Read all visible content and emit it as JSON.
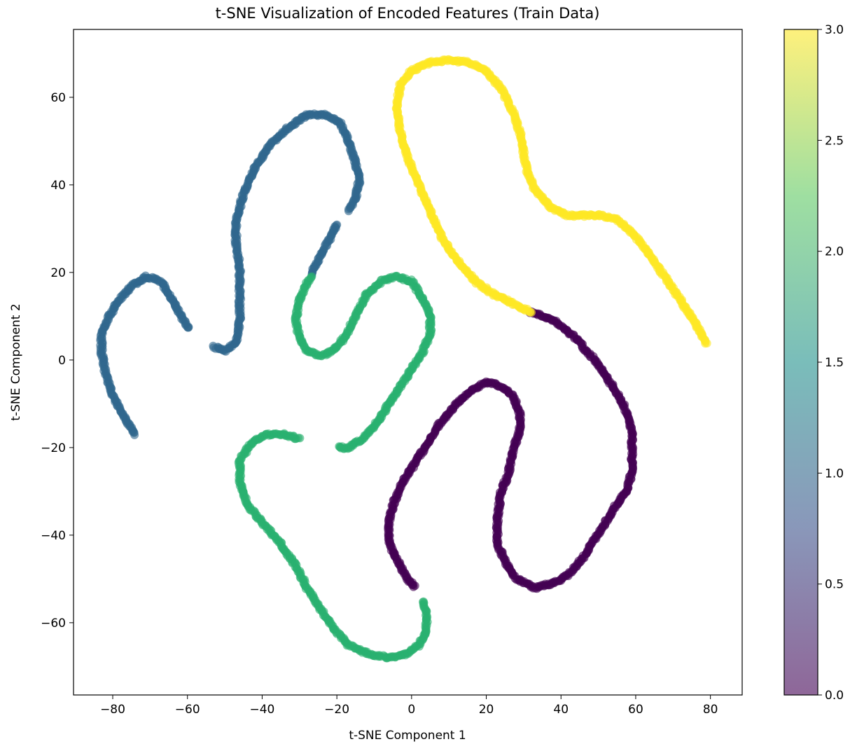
{
  "chart_data": {
    "type": "scatter",
    "title": "t-SNE Visualization of Encoded Features (Train Data)",
    "xlabel": "t-SNE Component 1",
    "ylabel": "t-SNE Component 2",
    "xlim": [
      -90.5,
      88.5
    ],
    "ylim": [
      -76.5,
      75.5
    ],
    "xticks": [
      -80,
      -60,
      -40,
      -20,
      0,
      20,
      40,
      60,
      80
    ],
    "yticks": [
      -60,
      -40,
      -20,
      0,
      20,
      40,
      60
    ],
    "grid": false,
    "marker_alpha": 0.6,
    "colorbar": {
      "min": 0.0,
      "max": 3.0,
      "ticks": [
        "0.0",
        "0.5",
        "1.0",
        "1.5",
        "2.0",
        "2.5",
        "3.0"
      ],
      "colormap": "viridis",
      "stops": [
        "#440154",
        "#3b528b",
        "#21918c",
        "#5ec962",
        "#fde725"
      ]
    },
    "series": [
      {
        "label_value": 0,
        "color": "#440154",
        "points": [
          [
            32,
            11
          ],
          [
            38,
            9
          ],
          [
            44,
            5
          ],
          [
            49,
            0
          ],
          [
            53,
            -5
          ],
          [
            56,
            -9
          ],
          [
            58,
            -13
          ],
          [
            59,
            -17
          ],
          [
            59,
            -21
          ],
          [
            59,
            -25
          ],
          [
            58,
            -29
          ],
          [
            56,
            -32
          ],
          [
            54,
            -34
          ],
          [
            52,
            -37
          ],
          [
            49,
            -41
          ],
          [
            46,
            -45
          ],
          [
            42,
            -49
          ],
          [
            38,
            -51
          ],
          [
            33,
            -52
          ],
          [
            28,
            -50
          ],
          [
            25,
            -46
          ],
          [
            23,
            -42
          ],
          [
            23,
            -36
          ],
          [
            24,
            -30
          ],
          [
            26,
            -26
          ],
          [
            27,
            -21
          ],
          [
            29,
            -16
          ],
          [
            29,
            -12
          ],
          [
            27,
            -8
          ],
          [
            24,
            -6
          ],
          [
            20,
            -5
          ],
          [
            16,
            -7
          ],
          [
            12,
            -10
          ],
          [
            8,
            -14
          ],
          [
            5,
            -18
          ],
          [
            2,
            -22
          ],
          [
            -1,
            -26
          ],
          [
            -3,
            -29
          ],
          [
            -5,
            -33
          ],
          [
            -6,
            -37
          ],
          [
            -6,
            -41
          ],
          [
            -5,
            -44
          ],
          [
            -3,
            -47
          ],
          [
            -1,
            -50
          ],
          [
            1,
            -52
          ]
        ]
      },
      {
        "label_value": 1,
        "color": "#31688e",
        "points": [
          [
            -74,
            -17
          ],
          [
            -77,
            -13
          ],
          [
            -80,
            -8
          ],
          [
            -82,
            -3
          ],
          [
            -83,
            2
          ],
          [
            -83,
            6
          ],
          [
            -81,
            10
          ],
          [
            -78,
            14
          ],
          [
            -75,
            17
          ],
          [
            -71,
            19
          ],
          [
            -67,
            18
          ],
          [
            -65,
            15
          ],
          [
            -63,
            12
          ],
          [
            -61,
            9
          ],
          [
            -59.5,
            7
          ]
        ]
      },
      {
        "label_value": 1,
        "color": "#31688e",
        "points": [
          [
            -53,
            3
          ],
          [
            -50,
            2
          ],
          [
            -47,
            4
          ],
          [
            -46,
            9
          ],
          [
            -46,
            15
          ],
          [
            -46,
            21
          ],
          [
            -47,
            27
          ],
          [
            -47,
            32
          ],
          [
            -45,
            38
          ],
          [
            -42,
            44
          ],
          [
            -38,
            49
          ],
          [
            -33,
            53
          ],
          [
            -28,
            56
          ],
          [
            -23,
            56
          ],
          [
            -19,
            54
          ],
          [
            -17,
            50
          ],
          [
            -15,
            45
          ],
          [
            -14,
            41
          ],
          [
            -15,
            37
          ],
          [
            -17,
            34
          ]
        ]
      },
      {
        "label_value": 1,
        "color": "#31688e",
        "points": [
          [
            -20,
            31
          ],
          [
            -23,
            26
          ],
          [
            -26,
            21
          ],
          [
            -27,
            19.5
          ]
        ]
      },
      {
        "label_value": 2,
        "color": "#2ab070",
        "points": [
          [
            -27,
            19
          ],
          [
            -30,
            14
          ],
          [
            -31,
            9
          ],
          [
            -30,
            5
          ],
          [
            -28,
            2
          ],
          [
            -24,
            1
          ],
          [
            -21,
            2
          ],
          [
            -18,
            5
          ],
          [
            -15,
            10
          ],
          [
            -12,
            15
          ],
          [
            -8,
            18
          ],
          [
            -4,
            19
          ],
          [
            0,
            18
          ],
          [
            3,
            14
          ],
          [
            5,
            10
          ],
          [
            5,
            6
          ],
          [
            3,
            2
          ],
          [
            0,
            -2
          ],
          [
            -3,
            -6
          ],
          [
            -6,
            -10
          ],
          [
            -9,
            -14
          ],
          [
            -13,
            -18
          ],
          [
            -17,
            -20
          ],
          [
            -20,
            -20
          ]
        ]
      },
      {
        "label_value": 2,
        "color": "#2ab070",
        "points": [
          [
            -30,
            -18
          ],
          [
            -34,
            -17
          ],
          [
            -39,
            -17
          ],
          [
            -43,
            -19
          ],
          [
            -46,
            -23
          ],
          [
            -46,
            -28
          ],
          [
            -44,
            -33
          ],
          [
            -39,
            -38
          ],
          [
            -35,
            -42
          ],
          [
            -31,
            -47
          ],
          [
            -28,
            -52
          ],
          [
            -25,
            -56
          ],
          [
            -21,
            -61
          ],
          [
            -17,
            -65
          ],
          [
            -12,
            -67
          ],
          [
            -6,
            -68
          ],
          [
            -1,
            -67
          ],
          [
            2,
            -65
          ],
          [
            4,
            -62
          ],
          [
            4,
            -58
          ],
          [
            3,
            -55
          ]
        ]
      },
      {
        "label_value": 3,
        "color": "#fde725",
        "points": [
          [
            32,
            11
          ],
          [
            27,
            13
          ],
          [
            22,
            15
          ],
          [
            17,
            18
          ],
          [
            12,
            23
          ],
          [
            8,
            28
          ],
          [
            5,
            34
          ],
          [
            2,
            40
          ],
          [
            -1,
            46
          ],
          [
            -3,
            52
          ],
          [
            -4,
            58
          ],
          [
            -3,
            63
          ],
          [
            0,
            66
          ],
          [
            5,
            68
          ],
          [
            10,
            68.5
          ],
          [
            15,
            68
          ],
          [
            20,
            66
          ],
          [
            24,
            62
          ],
          [
            27,
            57
          ],
          [
            29,
            52
          ],
          [
            30,
            47
          ],
          [
            31,
            43
          ],
          [
            33,
            39
          ],
          [
            37,
            35
          ],
          [
            42,
            33
          ],
          [
            47,
            33
          ],
          [
            51,
            33
          ],
          [
            55,
            32
          ],
          [
            59,
            29
          ],
          [
            63,
            25
          ],
          [
            67,
            20
          ],
          [
            71,
            15
          ],
          [
            74,
            11
          ],
          [
            77,
            7
          ],
          [
            79,
            3.5
          ]
        ]
      }
    ]
  }
}
